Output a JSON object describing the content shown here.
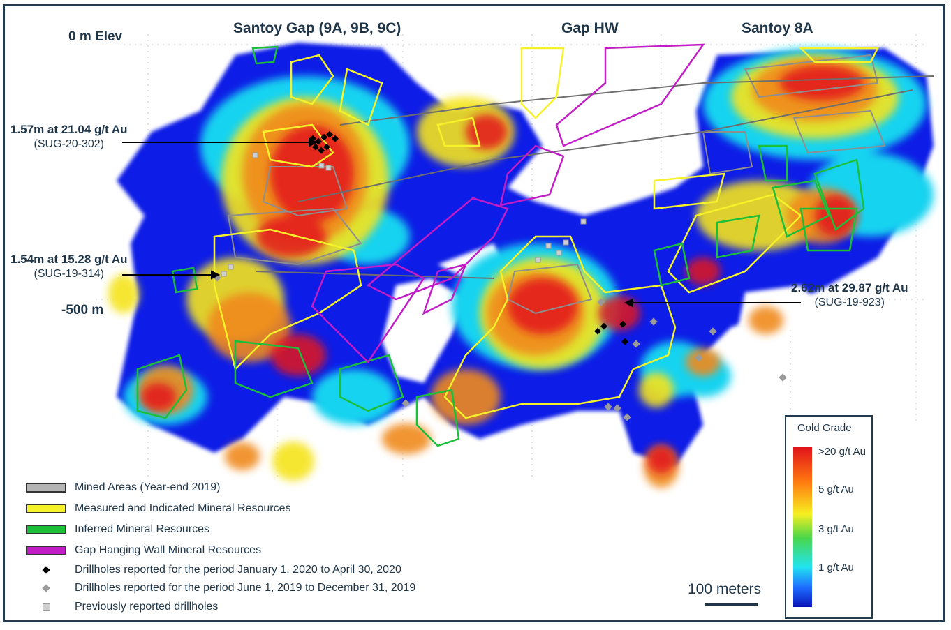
{
  "zones": {
    "santoy_gap": "Santoy Gap (9A, 9B, 9C)",
    "gap_hw": "Gap HW",
    "santoy_8a": "Santoy 8A"
  },
  "elevations": {
    "top": "0 m Elev",
    "mid": "-500 m"
  },
  "callouts": [
    {
      "value": "1.57m at 21.04 g/t Au",
      "hole": "(SUG-20-302)"
    },
    {
      "value": "1.54m at 15.28 g/t Au",
      "hole": "(SUG-19-314)"
    },
    {
      "value": "2.62m at 29.87 g/t Au",
      "hole": "(SUG-19-923)"
    }
  ],
  "legend": {
    "items": [
      {
        "label": "Mined Areas (Year-end 2019)",
        "color": "#b5b5b5"
      },
      {
        "label": "Measured and Indicated Mineral Resources",
        "color": "#f6f22a"
      },
      {
        "label": "Inferred Mineral Resources",
        "color": "#1bbf3a"
      },
      {
        "label": "Gap Hanging Wall Mineral Resources",
        "color": "#c21cc6"
      }
    ],
    "drillholes": [
      {
        "label": "Drillholes reported for the period January 1, 2020 to April 30, 2020",
        "color": "#000000"
      },
      {
        "label": "Drillholes reported for the period June 1, 2019 to December 31, 2019",
        "color": "#9a9a9a"
      },
      {
        "label": "Previously reported drillholes",
        "color": "#cfcfcf"
      }
    ]
  },
  "scale": {
    "label": "100 meters"
  },
  "grade_legend": {
    "title": "Gold Grade",
    "labels": [
      ">20 g/t Au",
      "5 g/t Au",
      "3 g/t Au",
      "1 g/t Au"
    ]
  },
  "colors": {
    "low_grade": "#0a1ee6",
    "cyan_grade": "#19d3f0",
    "mid_grade": "#f5e41e",
    "orange_grade": "#f08a1e",
    "high_grade": "#e3161c",
    "outline_measured": "#f6f22a",
    "outline_inferred": "#1bbf3a",
    "outline_hanging_wall": "#c21cc6",
    "mined": "#8e8e8e"
  }
}
